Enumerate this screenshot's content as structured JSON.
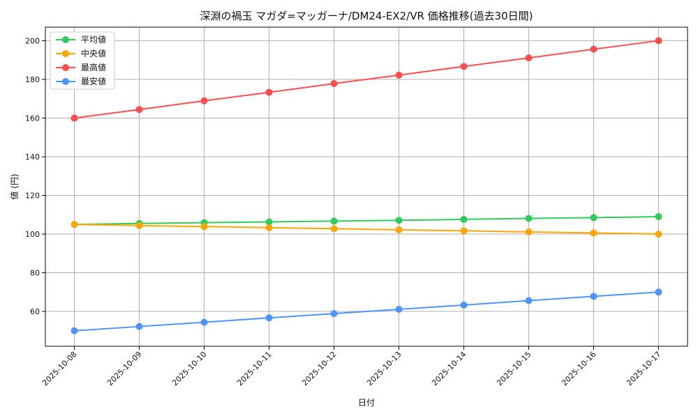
{
  "chart_data": {
    "type": "line",
    "title": "深淵の禍玉 マガダ=マッガーナ/DM24-EX2/VR 価格推移(過去30日間)",
    "xlabel": "日付",
    "ylabel": "値 (円)",
    "categories": [
      "2025-10-08",
      "2025-10-09",
      "2025-10-10",
      "2025-10-11",
      "2025-10-12",
      "2025-10-13",
      "2025-10-14",
      "2025-10-15",
      "2025-10-16",
      "2025-10-17"
    ],
    "yticks": [
      "60",
      "80",
      "100",
      "120",
      "140",
      "160",
      "180",
      "200"
    ],
    "ylim": [
      42,
      207
    ],
    "grid": true,
    "legend_position": "upper-left",
    "series": [
      {
        "name": "平均値",
        "color": "#2ecc5a",
        "values": [
          105.0,
          105.5,
          105.9,
          106.3,
          106.7,
          107.1,
          107.6,
          108.1,
          108.5,
          109.0
        ]
      },
      {
        "name": "中央値",
        "color": "#ffa500",
        "values": [
          105.0,
          104.4,
          103.9,
          103.3,
          102.8,
          102.2,
          101.7,
          101.1,
          100.6,
          100.0
        ]
      },
      {
        "name": "最高値",
        "color": "#ff4d4d",
        "values": [
          160.0,
          164.4,
          168.9,
          173.3,
          177.8,
          182.2,
          186.7,
          191.1,
          195.6,
          200.0
        ]
      },
      {
        "name": "最安値",
        "color": "#4d94ff",
        "values": [
          50.0,
          52.2,
          54.4,
          56.7,
          58.9,
          61.1,
          63.3,
          65.6,
          67.8,
          70.0
        ]
      }
    ]
  }
}
